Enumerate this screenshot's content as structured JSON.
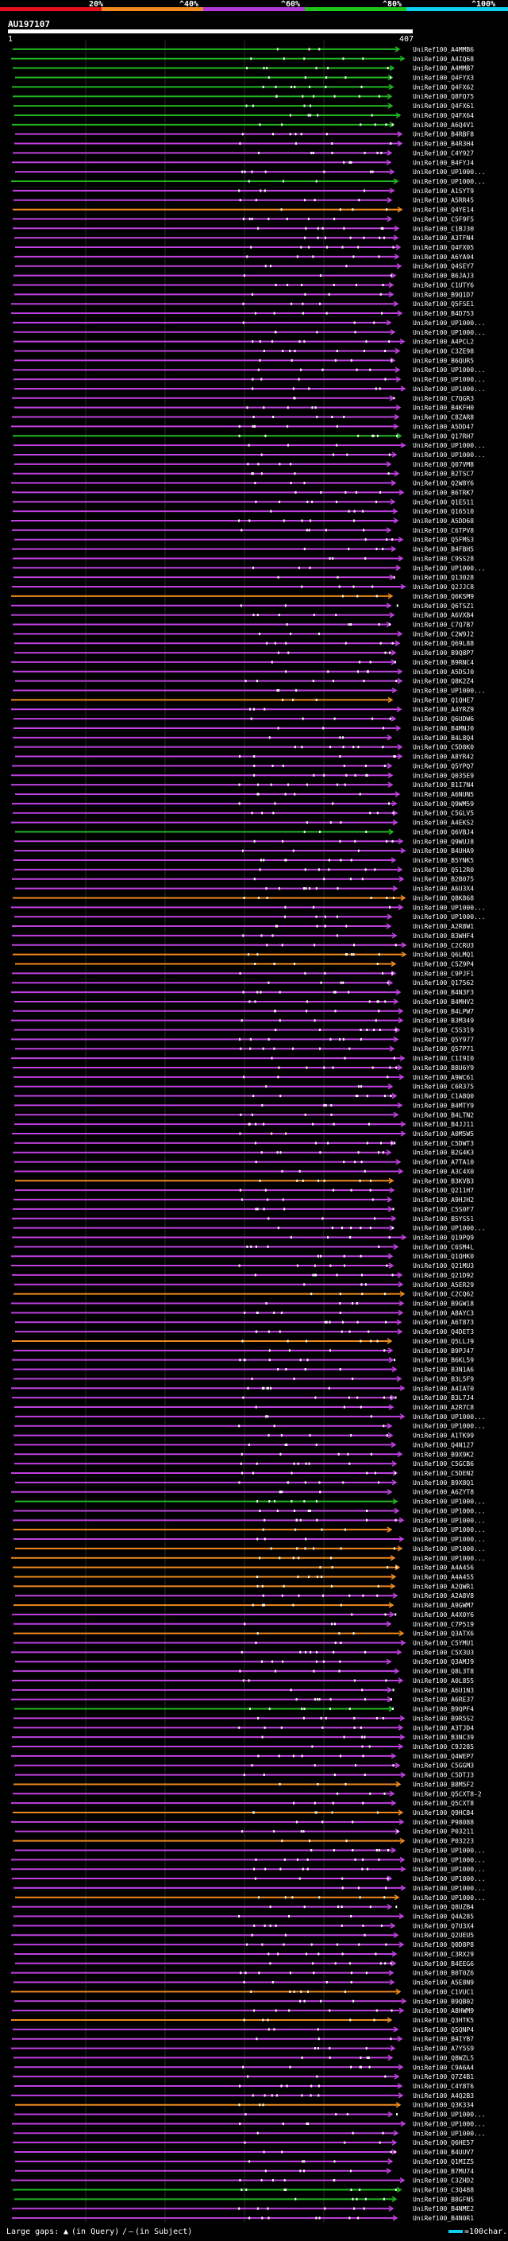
{
  "chart_data": {
    "type": "alignment-overview",
    "query_id": "AU197107",
    "axis": {
      "start_label": "1",
      "end_label": "407",
      "range": [
        1,
        407
      ]
    },
    "identity_scale": {
      "thresholds": [
        "20%",
        "^40%",
        "^60%",
        "^80%",
        "^100%"
      ],
      "colors": [
        "#e8101a",
        "#f08a1e",
        "#b03ad8",
        "#1fc61c",
        "#10d0f0"
      ]
    },
    "series_colors": {
      "magenta": "#c040e0",
      "purple": "#8030c0",
      "orange": "#f08a1e",
      "green": "#20b820"
    },
    "legend": {
      "large_gaps_label": "Large gaps:",
      "in_query": "(in Query)",
      "slash": "/",
      "in_subject": "(in Subject)",
      "scale_label": "=100char."
    },
    "hits": [
      {
        "id": "UniRef100_A4MMB6",
        "color": "green"
      },
      {
        "id": "UniRef100_A4IQ68",
        "color": "green"
      },
      {
        "id": "UniRef100_A4MMB7",
        "color": "green"
      },
      {
        "id": "UniRef100_Q4FYX3",
        "color": "green"
      },
      {
        "id": "UniRef100_Q4FX62",
        "color": "green"
      },
      {
        "id": "UniRef100_Q8FQ75",
        "color": "green"
      },
      {
        "id": "UniRef100_Q4FX61",
        "color": "green"
      },
      {
        "id": "UniRef100_Q4FX64",
        "color": "green"
      },
      {
        "id": "UniRef100_A6Q4V1",
        "color": "green"
      },
      {
        "id": "UniRef100_B4RBF8",
        "color": "magenta"
      },
      {
        "id": "UniRef100_B4R3H4",
        "color": "magenta"
      },
      {
        "id": "UniRef100_C4Y927",
        "color": "magenta"
      },
      {
        "id": "UniRef100_B4FYJ4",
        "color": "magenta"
      },
      {
        "id": "UniRef100_UP1000...",
        "color": "magenta"
      },
      {
        "id": "UniRef100_UP1000...",
        "color": "green"
      },
      {
        "id": "UniRef100_A1SYT9",
        "color": "magenta"
      },
      {
        "id": "UniRef100_A5RR45",
        "color": "magenta"
      },
      {
        "id": "UniRef100_Q4YE14",
        "color": "orange"
      },
      {
        "id": "UniRef100_C5F9F5",
        "color": "magenta"
      },
      {
        "id": "UniRef100_C1BJ30",
        "color": "magenta"
      },
      {
        "id": "UniRef100_A3TFN4",
        "color": "magenta"
      },
      {
        "id": "UniRef100_Q4FX05",
        "color": "magenta"
      },
      {
        "id": "UniRef100_A6YA94",
        "color": "magenta"
      },
      {
        "id": "UniRef100_Q4SEY7",
        "color": "magenta"
      },
      {
        "id": "UniRef100_B6JAJ3",
        "color": "magenta"
      },
      {
        "id": "UniRef100_C1UTY6",
        "color": "magenta"
      },
      {
        "id": "UniRef100_B9Q1D7",
        "color": "magenta"
      },
      {
        "id": "UniRef100_Q5FSE1",
        "color": "magenta"
      },
      {
        "id": "UniRef100_B4D753",
        "color": "magenta"
      },
      {
        "id": "UniRef100_UP1000...",
        "color": "magenta"
      },
      {
        "id": "UniRef100_UP1000...",
        "color": "magenta"
      },
      {
        "id": "UniRef100_A4PCL2",
        "color": "magenta"
      },
      {
        "id": "UniRef100_C3ZE98",
        "color": "magenta"
      },
      {
        "id": "UniRef100_B6QUR5",
        "color": "magenta"
      },
      {
        "id": "UniRef100_UP1000...",
        "color": "magenta"
      },
      {
        "id": "UniRef100_UP1000...",
        "color": "magenta"
      },
      {
        "id": "UniRef100_UP1000...",
        "color": "magenta"
      },
      {
        "id": "UniRef100_C7QGR3",
        "color": "magenta"
      },
      {
        "id": "UniRef100_B4KFH0",
        "color": "magenta"
      },
      {
        "id": "UniRef100_C8ZAR8",
        "color": "magenta"
      },
      {
        "id": "UniRef100_A5DD47",
        "color": "magenta"
      },
      {
        "id": "UniRef100_Q17RH7",
        "color": "green"
      },
      {
        "id": "UniRef100_UP1000...",
        "color": "magenta"
      },
      {
        "id": "UniRef100_UP1000...",
        "color": "magenta"
      },
      {
        "id": "UniRef100_Q07VM8",
        "color": "magenta"
      },
      {
        "id": "UniRef100_B2TSC7",
        "color": "magenta"
      },
      {
        "id": "UniRef100_Q2W8Y6",
        "color": "magenta"
      },
      {
        "id": "UniRef100_B6TRK7",
        "color": "magenta"
      },
      {
        "id": "UniRef100_Q1E511",
        "color": "magenta"
      },
      {
        "id": "UniRef100_Q16510",
        "color": "magenta"
      },
      {
        "id": "UniRef100_A5DD68",
        "color": "magenta"
      },
      {
        "id": "UniRef100_C6TPV8",
        "color": "magenta"
      },
      {
        "id": "UniRef100_Q5FMS3",
        "color": "magenta"
      },
      {
        "id": "UniRef100_B4FBH5",
        "color": "magenta"
      },
      {
        "id": "UniRef100_C9SS28",
        "color": "magenta"
      },
      {
        "id": "UniRef100_UP1000...",
        "color": "magenta"
      },
      {
        "id": "UniRef100_Q13028",
        "color": "magenta"
      },
      {
        "id": "UniRef100_Q2JJC8",
        "color": "magenta"
      },
      {
        "id": "UniRef100_Q6KSM9",
        "color": "orange"
      },
      {
        "id": "UniRef100_Q6TSZ1",
        "color": "magenta"
      },
      {
        "id": "UniRef100_A6VXB4",
        "color": "magenta"
      },
      {
        "id": "UniRef100_C7Q7B7",
        "color": "magenta"
      },
      {
        "id": "UniRef100_C2W9J2",
        "color": "magenta"
      },
      {
        "id": "UniRef100_Q69L88",
        "color": "magenta"
      },
      {
        "id": "UniRef100_B9Q8P7",
        "color": "magenta"
      },
      {
        "id": "UniRef100_B9RNC4",
        "color": "magenta"
      },
      {
        "id": "UniRef100_A5DSJ0",
        "color": "magenta"
      },
      {
        "id": "UniRef100_Q8K2Z4",
        "color": "magenta"
      },
      {
        "id": "UniRef100_UP1000...",
        "color": "magenta"
      },
      {
        "id": "UniRef100_Q1QHE7",
        "color": "orange"
      },
      {
        "id": "UniRef100_A4YRZ9",
        "color": "magenta"
      },
      {
        "id": "UniRef100_Q6UDW6",
        "color": "magenta"
      },
      {
        "id": "UniRef100_B4MNJ0",
        "color": "magenta"
      },
      {
        "id": "UniRef100_B4L8Q4",
        "color": "magenta"
      },
      {
        "id": "UniRef100_C5D8K0",
        "color": "magenta"
      },
      {
        "id": "UniRef100_A8YR42",
        "color": "magenta"
      },
      {
        "id": "UniRef100_Q5YPQ7",
        "color": "magenta"
      },
      {
        "id": "UniRef100_Q035E9",
        "color": "magenta"
      },
      {
        "id": "UniRef100_B1I7N4",
        "color": "magenta"
      },
      {
        "id": "UniRef100_A6NUN5",
        "color": "magenta"
      },
      {
        "id": "UniRef100_Q9WM59",
        "color": "magenta"
      },
      {
        "id": "UniRef100_C5GLV5",
        "color": "magenta"
      },
      {
        "id": "UniRef100_A4EKS2",
        "color": "magenta"
      },
      {
        "id": "UniRef100_Q6VBJ4",
        "color": "green"
      },
      {
        "id": "UniRef100_Q9WUJ8",
        "color": "magenta"
      },
      {
        "id": "UniRef100_B4UHA9",
        "color": "magenta"
      },
      {
        "id": "UniRef100_B5YNK5",
        "color": "magenta"
      },
      {
        "id": "UniRef100_Q512R0",
        "color": "magenta"
      },
      {
        "id": "UniRef100_B2B075",
        "color": "magenta"
      },
      {
        "id": "UniRef100_A6U3X4",
        "color": "magenta"
      },
      {
        "id": "UniRef100_Q8K868",
        "color": "orange"
      },
      {
        "id": "UniRef100_UP1000...",
        "color": "magenta"
      },
      {
        "id": "UniRef100_UP1000...",
        "color": "magenta"
      },
      {
        "id": "UniRef100_A2R8W1",
        "color": "magenta"
      },
      {
        "id": "UniRef100_B3WHF4",
        "color": "magenta"
      },
      {
        "id": "UniRef100_C2CRU3",
        "color": "magenta"
      },
      {
        "id": "UniRef100_Q6LMQ1",
        "color": "orange"
      },
      {
        "id": "UniRef100_C5Z9P4",
        "color": "orange"
      },
      {
        "id": "UniRef100_C9PJF1",
        "color": "magenta"
      },
      {
        "id": "UniRef100_Q17562",
        "color": "magenta"
      },
      {
        "id": "UniRef100_B4N3F3",
        "color": "magenta"
      },
      {
        "id": "UniRef100_B4MHV2",
        "color": "magenta"
      },
      {
        "id": "UniRef100_B4LPW7",
        "color": "magenta"
      },
      {
        "id": "UniRef100_B3M349",
        "color": "magenta"
      },
      {
        "id": "UniRef100_C5S319",
        "color": "magenta"
      },
      {
        "id": "UniRef100_Q5Y977",
        "color": "magenta"
      },
      {
        "id": "UniRef100_Q57P71",
        "color": "magenta"
      },
      {
        "id": "UniRef100_C1I9I0",
        "color": "magenta"
      },
      {
        "id": "UniRef100_B8U6Y9",
        "color": "magenta"
      },
      {
        "id": "UniRef100_A9WC61",
        "color": "magenta"
      },
      {
        "id": "UniRef100_C6R375",
        "color": "magenta"
      },
      {
        "id": "UniRef100_C1A8Q0",
        "color": "magenta"
      },
      {
        "id": "UniRef100_B4MTY9",
        "color": "magenta"
      },
      {
        "id": "UniRef100_B4LTN2",
        "color": "magenta"
      },
      {
        "id": "UniRef100_B4JJ11",
        "color": "magenta"
      },
      {
        "id": "UniRef100_A0M5W5",
        "color": "magenta"
      },
      {
        "id": "UniRef100_C5DWT3",
        "color": "magenta"
      },
      {
        "id": "UniRef100_B2G4K3",
        "color": "magenta"
      },
      {
        "id": "UniRef100_A7TA10",
        "color": "magenta"
      },
      {
        "id": "UniRef100_A3C4X0",
        "color": "magenta"
      },
      {
        "id": "UniRef100_B3KVB3",
        "color": "orange"
      },
      {
        "id": "UniRef100_Q211H7",
        "color": "magenta"
      },
      {
        "id": "UniRef100_A9HJH2",
        "color": "magenta"
      },
      {
        "id": "UniRef100_C5S0F7",
        "color": "magenta"
      },
      {
        "id": "UniRef100_B5YS51",
        "color": "magenta"
      },
      {
        "id": "UniRef100_UP1000...",
        "color": "magenta"
      },
      {
        "id": "UniRef100_Q19PQ9",
        "color": "magenta"
      },
      {
        "id": "UniRef100_C6SM4L",
        "color": "magenta"
      },
      {
        "id": "UniRef100_Q1QHK0",
        "color": "magenta"
      },
      {
        "id": "UniRef100_Q21MU3",
        "color": "magenta"
      },
      {
        "id": "UniRef100_Q21D92",
        "color": "magenta"
      },
      {
        "id": "UniRef100_A5ER29",
        "color": "magenta"
      },
      {
        "id": "UniRef100_C2CQ62",
        "color": "orange"
      },
      {
        "id": "UniRef100_B9GW18",
        "color": "magenta"
      },
      {
        "id": "UniRef100_A8AYC3",
        "color": "magenta"
      },
      {
        "id": "UniRef100_A6T873",
        "color": "magenta"
      },
      {
        "id": "UniRef100_Q4DET3",
        "color": "magenta"
      },
      {
        "id": "UniRef100_Q5LLJ9",
        "color": "orange"
      },
      {
        "id": "UniRef100_B9PJ47",
        "color": "magenta"
      },
      {
        "id": "UniRef100_B6KL59",
        "color": "magenta"
      },
      {
        "id": "UniRef100_B3N1A6",
        "color": "magenta"
      },
      {
        "id": "UniRef100_B3L5F9",
        "color": "magenta"
      },
      {
        "id": "UniRef100_A4IAT0",
        "color": "magenta"
      },
      {
        "id": "UniRef100_B3L7J4",
        "color": "magenta"
      },
      {
        "id": "UniRef100_A2R7C8",
        "color": "magenta"
      },
      {
        "id": "UniRef100_UP1000...",
        "color": "magenta"
      },
      {
        "id": "UniRef100_UP1000...",
        "color": "magenta"
      },
      {
        "id": "UniRef100_A1TK99",
        "color": "magenta"
      },
      {
        "id": "UniRef100_Q4N127",
        "color": "magenta"
      },
      {
        "id": "UniRef100_B9X9K2",
        "color": "magenta"
      },
      {
        "id": "UniRef100_C5GCB6",
        "color": "magenta"
      },
      {
        "id": "UniRef100_C5DEN2",
        "color": "magenta"
      },
      {
        "id": "UniRef100_B9X8Q1",
        "color": "magenta"
      },
      {
        "id": "UniRef100_A6ZYT8",
        "color": "magenta"
      },
      {
        "id": "UniRef100_UP1000...",
        "color": "green"
      },
      {
        "id": "UniRef100_UP1000...",
        "color": "magenta"
      },
      {
        "id": "UniRef100_UP1000...",
        "color": "magenta"
      },
      {
        "id": "UniRef100_UP1000...",
        "color": "orange"
      },
      {
        "id": "UniRef100_UP1000...",
        "color": "magenta"
      },
      {
        "id": "UniRef100_UP1000...",
        "color": "orange"
      },
      {
        "id": "UniRef100_UP1000...",
        "color": "orange"
      },
      {
        "id": "UniRef100_A4A456",
        "color": "orange"
      },
      {
        "id": "UniRef100_A4A455",
        "color": "orange"
      },
      {
        "id": "UniRef100_A2QWR1",
        "color": "orange"
      },
      {
        "id": "UniRef100_A2A8V8",
        "color": "magenta"
      },
      {
        "id": "UniRef100_A9GWM7",
        "color": "orange"
      },
      {
        "id": "UniRef100_A4X0Y6",
        "color": "magenta"
      },
      {
        "id": "UniRef100_C7P519",
        "color": "magenta"
      },
      {
        "id": "UniRef100_Q3ATX6",
        "color": "orange"
      },
      {
        "id": "UniRef100_C5YMU1",
        "color": "magenta"
      },
      {
        "id": "UniRef100_C5X3U3",
        "color": "magenta"
      },
      {
        "id": "UniRef100_Q3AMJ9",
        "color": "magenta"
      },
      {
        "id": "UniRef100_Q8L3T8",
        "color": "magenta"
      },
      {
        "id": "UniRef100_A0L855",
        "color": "magenta"
      },
      {
        "id": "UniRef100_A6U1N3",
        "color": "magenta"
      },
      {
        "id": "UniRef100_A6RE37",
        "color": "magenta"
      },
      {
        "id": "UniRef100_B9QPF4",
        "color": "green"
      },
      {
        "id": "UniRef100_B9R5S2",
        "color": "magenta"
      },
      {
        "id": "UniRef100_A3TJD4",
        "color": "magenta"
      },
      {
        "id": "UniRef100_B3NC39",
        "color": "magenta"
      },
      {
        "id": "UniRef100_C9J285",
        "color": "magenta"
      },
      {
        "id": "UniRef100_Q4WEP7",
        "color": "magenta"
      },
      {
        "id": "UniRef100_C5GGM3",
        "color": "magenta"
      },
      {
        "id": "UniRef100_C5DTJ3",
        "color": "magenta"
      },
      {
        "id": "UniRef100_B8M5F2",
        "color": "orange"
      },
      {
        "id": "UniRef100_Q5CXT8-2",
        "color": "magenta"
      },
      {
        "id": "UniRef100_Q5CXT8",
        "color": "magenta"
      },
      {
        "id": "UniRef100_Q9HC84",
        "color": "orange"
      },
      {
        "id": "UniRef100_P98088",
        "color": "magenta"
      },
      {
        "id": "UniRef100_P03211",
        "color": "magenta"
      },
      {
        "id": "UniRef100_P03223",
        "color": "orange"
      },
      {
        "id": "UniRef100_UP1000...",
        "color": "magenta"
      },
      {
        "id": "UniRef100_UP1000...",
        "color": "magenta"
      },
      {
        "id": "UniRef100_UP1000...",
        "color": "magenta"
      },
      {
        "id": "UniRef100_UP1000...",
        "color": "magenta"
      },
      {
        "id": "UniRef100_UP1000...",
        "color": "magenta"
      },
      {
        "id": "UniRef100_UP1000...",
        "color": "orange"
      },
      {
        "id": "UniRef100_Q8UZB4",
        "color": "magenta"
      },
      {
        "id": "UniRef100_Q4A285",
        "color": "magenta"
      },
      {
        "id": "UniRef100_Q7U3X4",
        "color": "magenta"
      },
      {
        "id": "UniRef100_Q2UEU5",
        "color": "magenta"
      },
      {
        "id": "UniRef100_Q0D8P8",
        "color": "magenta"
      },
      {
        "id": "UniRef100_C3RX29",
        "color": "magenta"
      },
      {
        "id": "UniRef100_B4EEG6",
        "color": "magenta"
      },
      {
        "id": "UniRef100_B0T0Z6",
        "color": "magenta"
      },
      {
        "id": "UniRef100_A5E8N9",
        "color": "magenta"
      },
      {
        "id": "UniRef100_C1VUC1",
        "color": "orange"
      },
      {
        "id": "UniRef100_B9QB02",
        "color": "magenta"
      },
      {
        "id": "UniRef100_A8HWM9",
        "color": "magenta"
      },
      {
        "id": "UniRef100_Q3HTK5",
        "color": "orange"
      },
      {
        "id": "UniRef100_Q5QNP4",
        "color": "magenta"
      },
      {
        "id": "UniRef100_B4IYB7",
        "color": "magenta"
      },
      {
        "id": "UniRef100_A7Y5S9",
        "color": "magenta"
      },
      {
        "id": "UniRef100_Q8WZL5",
        "color": "magenta"
      },
      {
        "id": "UniRef100_C9A6A4",
        "color": "magenta"
      },
      {
        "id": "UniRef100_Q7Z4B1",
        "color": "magenta"
      },
      {
        "id": "UniRef100_C4Y8T6",
        "color": "magenta"
      },
      {
        "id": "UniRef100_A4Q2B3",
        "color": "magenta"
      },
      {
        "id": "UniRef100_Q3K334",
        "color": "orange"
      },
      {
        "id": "UniRef100_UP1000...",
        "color": "magenta"
      },
      {
        "id": "UniRef100_UP1000...",
        "color": "magenta"
      },
      {
        "id": "UniRef100_UP1000...",
        "color": "magenta"
      },
      {
        "id": "UniRef100_Q6HE57",
        "color": "magenta"
      },
      {
        "id": "UniRef100_B4UUV7",
        "color": "magenta"
      },
      {
        "id": "UniRef100_Q1MIZ5",
        "color": "magenta"
      },
      {
        "id": "UniRef100_B7MU74",
        "color": "magenta"
      },
      {
        "id": "UniRef100_C3ZHD2",
        "color": "magenta"
      },
      {
        "id": "UniRef100_C3Q488",
        "color": "green"
      },
      {
        "id": "UniRef100_B8GFN5",
        "color": "green"
      },
      {
        "id": "UniRef100_B4NME2",
        "color": "magenta"
      },
      {
        "id": "UniRef100_B4N0R1",
        "color": "magenta"
      }
    ]
  }
}
